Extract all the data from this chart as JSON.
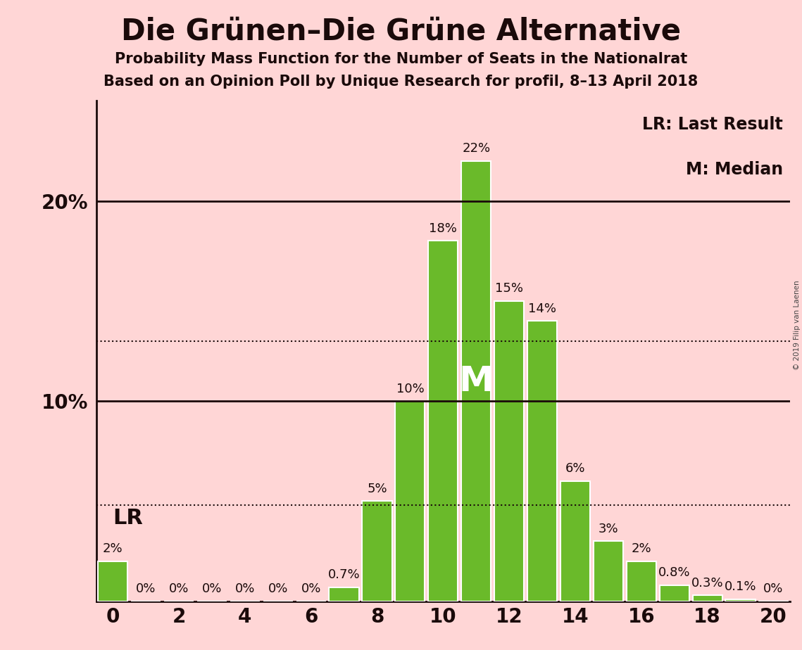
{
  "title": "Die Grünen–Die Grüne Alternative",
  "subtitle1": "Probability Mass Function for the Number of Seats in the Nationalrat",
  "subtitle2": "Based on an Opinion Poll by Unique Research for profil, 8–13 April 2018",
  "copyright": "© 2019 Filip van Laenen",
  "seats": [
    0,
    1,
    2,
    3,
    4,
    5,
    6,
    7,
    8,
    9,
    10,
    11,
    12,
    13,
    14,
    15,
    16,
    17,
    18,
    19,
    20
  ],
  "probabilities": [
    2.0,
    0.0,
    0.0,
    0.0,
    0.0,
    0.0,
    0.0,
    0.7,
    5.0,
    10.0,
    18.0,
    22.0,
    15.0,
    14.0,
    6.0,
    3.0,
    2.0,
    0.8,
    0.3,
    0.1,
    0.0
  ],
  "bar_color": "#6aba2a",
  "background_color": "#FFD6D6",
  "text_color": "#1a0a0a",
  "bar_edge_color": "#ffffff",
  "lr_line_y": 4.8,
  "lr_label": "LR",
  "median_seat": 11,
  "median_label": "M",
  "dotted_line_y": 13.0,
  "ylim": [
    0,
    25
  ],
  "xlim": [
    -0.5,
    20.5
  ],
  "legend_lr": "LR: Last Result",
  "legend_m": "M: Median",
  "title_fontsize": 30,
  "subtitle_fontsize": 15,
  "bar_label_fontsize": 13,
  "axis_tick_fontsize": 20,
  "legend_fontsize": 17,
  "lr_label_fontsize": 22
}
